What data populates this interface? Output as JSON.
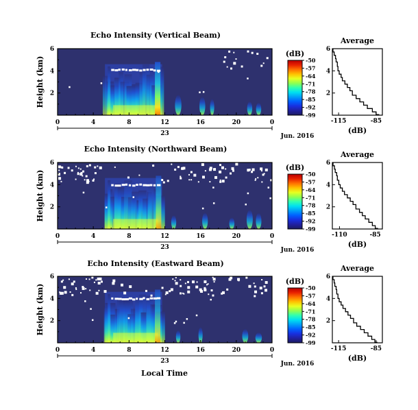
{
  "xlabel": "Local Time",
  "date_label": "Jun. 2016",
  "day_label": "23",
  "xtick_labels": [
    "0",
    "4",
    "8",
    "12",
    "16",
    "20",
    "0"
  ],
  "ytick_labels": [
    "6",
    "4",
    "2"
  ],
  "ylabel": "Height (km)",
  "colorbar": {
    "unit": "(dB)",
    "labels": [
      "-50",
      "-57",
      "-64",
      "-71",
      "-78",
      "-85",
      "-92",
      "-99"
    ],
    "colors": [
      "#b80000",
      "#e82000",
      "#ff7000",
      "#ffc000",
      "#e8ff20",
      "#90ff50",
      "#30ffb0",
      "#00e0f0",
      "#00a0f8",
      "#0060ff",
      "#1830e0",
      "#2020a0",
      "#1c1c60"
    ]
  },
  "chart_data": [
    {
      "type": "heatmap",
      "title": "Echo Intensity (Vertical Beam)",
      "xlabel": "Local Time",
      "ylabel": "Height (km)",
      "x_unit": "hour",
      "xlim": [
        0,
        24
      ],
      "ylim": [
        0,
        6
      ],
      "clim": [
        -99,
        -50
      ],
      "background_level_dB": -99,
      "features": [
        {
          "kind": "convective_echo",
          "x_start": 5.3,
          "x_end": 11.7,
          "top_km": 4.6,
          "peak_dB": -57,
          "peak_hour": 11.2
        },
        {
          "kind": "melting_layer",
          "x_start": 6.0,
          "x_end": 11.5,
          "height_km": 4.1
        },
        {
          "kind": "weak_echoes",
          "hours": [
            13.5,
            16.2,
            17.3,
            21.5,
            22.5
          ]
        },
        {
          "kind": "no_data_patches",
          "region": "upper",
          "x_start": 18.5,
          "x_end": 23.5
        }
      ]
    },
    {
      "type": "line",
      "title": "Average",
      "xlabel": "(dB)",
      "xticks": [
        -115,
        -85
      ],
      "xlim": [
        -120,
        -80
      ],
      "ylim": [
        0,
        6
      ],
      "yticks": [
        2,
        4,
        6
      ],
      "x": [
        -119.5,
        -118.5,
        -117.5,
        -117.0,
        -116.0,
        -115.5,
        -114.5,
        -113.0,
        -112.0,
        -110.0,
        -108.0,
        -106.0,
        -104.0,
        -101.0,
        -98.0,
        -95.0,
        -92.0,
        -88.0,
        -85.0,
        -82.5
      ],
      "y": [
        6.0,
        5.7,
        5.4,
        5.1,
        4.8,
        4.4,
        4.0,
        3.7,
        3.4,
        3.1,
        2.8,
        2.5,
        2.2,
        1.8,
        1.5,
        1.2,
        0.9,
        0.6,
        0.3,
        0.05
      ]
    },
    {
      "type": "heatmap",
      "title": "Echo Intensity (Northward Beam)",
      "xlabel": "Local Time",
      "ylabel": "Height (km)",
      "x_unit": "hour",
      "xlim": [
        0,
        24
      ],
      "ylim": [
        0,
        6
      ],
      "clim": [
        -99,
        -50
      ],
      "background_level_dB": -99,
      "features": [
        {
          "kind": "convective_echo",
          "x_start": 5.3,
          "x_end": 11.7,
          "top_km": 4.6,
          "peak_dB": -71,
          "peak_hour": 11.3
        },
        {
          "kind": "melting_layer",
          "x_start": 6.0,
          "x_end": 11.5,
          "height_km": 4.0
        },
        {
          "kind": "weak_echoes",
          "hours": [
            13.0,
            16.5,
            19.5,
            21.5,
            22.5
          ]
        },
        {
          "kind": "no_data_patches",
          "region": "upper",
          "x_start": 0,
          "x_end": 24
        }
      ]
    },
    {
      "type": "line",
      "title": "Average",
      "xlabel": "(dB)",
      "xticks": [
        -110,
        -85
      ],
      "xlim": [
        -115,
        -80
      ],
      "ylim": [
        0,
        6
      ],
      "yticks": [
        2,
        4,
        6
      ],
      "x": [
        -114.5,
        -113.5,
        -113.0,
        -112.0,
        -111.5,
        -110.5,
        -109.5,
        -108.0,
        -106.5,
        -104.5,
        -102.5,
        -100.5,
        -98.5,
        -96.0,
        -94.0,
        -92.0,
        -89.5,
        -87.0,
        -85.0,
        -83.0
      ],
      "y": [
        6.0,
        5.7,
        5.4,
        5.1,
        4.8,
        4.4,
        4.0,
        3.7,
        3.4,
        3.1,
        2.8,
        2.5,
        2.2,
        1.8,
        1.5,
        1.2,
        0.9,
        0.6,
        0.3,
        0.05
      ]
    },
    {
      "type": "heatmap",
      "title": "Echo Intensity (Eastward Beam)",
      "xlabel": "Local Time",
      "ylabel": "Height (km)",
      "x_unit": "hour",
      "xlim": [
        0,
        24
      ],
      "ylim": [
        0,
        6
      ],
      "clim": [
        -99,
        -50
      ],
      "background_level_dB": -99,
      "features": [
        {
          "kind": "convective_echo",
          "x_start": 5.3,
          "x_end": 11.7,
          "top_km": 4.6,
          "peak_dB": -71,
          "peak_hour": 11.2
        },
        {
          "kind": "melting_layer",
          "x_start": 6.0,
          "x_end": 11.5,
          "height_km": 4.0
        },
        {
          "kind": "weak_echoes",
          "hours": [
            13.5,
            16.0,
            21.0,
            22.5
          ]
        },
        {
          "kind": "no_data_patches",
          "region": "upper",
          "x_start": 0,
          "x_end": 23.5
        }
      ]
    },
    {
      "type": "line",
      "title": "Average",
      "xlabel": "(dB)",
      "xticks": [
        -115,
        -85
      ],
      "xlim": [
        -120,
        -80
      ],
      "ylim": [
        0,
        6
      ],
      "yticks": [
        2,
        4,
        6
      ],
      "x": [
        -119.5,
        -118.5,
        -118.0,
        -117.0,
        -116.5,
        -115.5,
        -114.5,
        -113.0,
        -111.5,
        -109.5,
        -107.5,
        -105.5,
        -103.0,
        -100.5,
        -97.5,
        -94.5,
        -91.5,
        -88.5,
        -86.0,
        -84.0
      ],
      "y": [
        6.0,
        5.7,
        5.4,
        5.1,
        4.8,
        4.4,
        4.0,
        3.7,
        3.4,
        3.1,
        2.8,
        2.5,
        2.2,
        1.8,
        1.5,
        1.2,
        0.9,
        0.6,
        0.3,
        0.05
      ]
    }
  ]
}
